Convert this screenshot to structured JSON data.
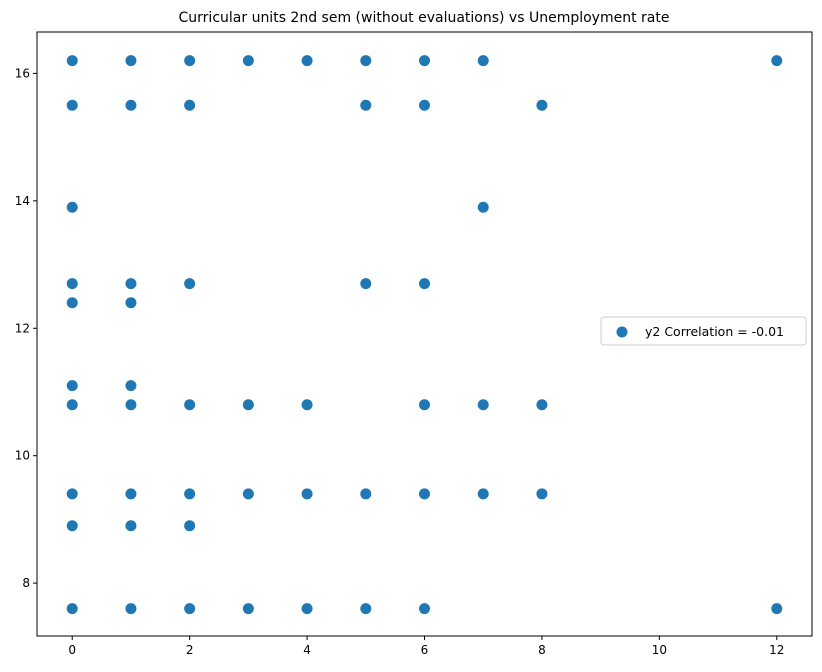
{
  "chart_data": {
    "type": "scatter",
    "title": "Curricular units 2nd sem (without evaluations) vs Unemployment rate",
    "xlabel": "",
    "ylabel": "",
    "xlim": [
      -0.6,
      12.6
    ],
    "ylim": [
      7.17,
      16.65
    ],
    "xticks": [
      0,
      2,
      4,
      6,
      8,
      10,
      12
    ],
    "yticks": [
      8,
      10,
      12,
      14,
      16
    ],
    "grid": false,
    "legend_position": "center-right",
    "series": [
      {
        "name": "y2 Correlation = -0.01",
        "color": "#1f77b4",
        "points": [
          [
            0,
            16.2
          ],
          [
            1,
            16.2
          ],
          [
            2,
            16.2
          ],
          [
            3,
            16.2
          ],
          [
            4,
            16.2
          ],
          [
            5,
            16.2
          ],
          [
            6,
            16.2
          ],
          [
            7,
            16.2
          ],
          [
            12,
            16.2
          ],
          [
            0,
            15.5
          ],
          [
            1,
            15.5
          ],
          [
            2,
            15.5
          ],
          [
            5,
            15.5
          ],
          [
            6,
            15.5
          ],
          [
            8,
            15.5
          ],
          [
            0,
            13.9
          ],
          [
            7,
            13.9
          ],
          [
            0,
            12.7
          ],
          [
            1,
            12.7
          ],
          [
            2,
            12.7
          ],
          [
            5,
            12.7
          ],
          [
            6,
            12.7
          ],
          [
            0,
            12.4
          ],
          [
            1,
            12.4
          ],
          [
            0,
            11.1
          ],
          [
            1,
            11.1
          ],
          [
            0,
            10.8
          ],
          [
            1,
            10.8
          ],
          [
            2,
            10.8
          ],
          [
            3,
            10.8
          ],
          [
            4,
            10.8
          ],
          [
            6,
            10.8
          ],
          [
            7,
            10.8
          ],
          [
            8,
            10.8
          ],
          [
            0,
            9.4
          ],
          [
            1,
            9.4
          ],
          [
            2,
            9.4
          ],
          [
            3,
            9.4
          ],
          [
            4,
            9.4
          ],
          [
            5,
            9.4
          ],
          [
            6,
            9.4
          ],
          [
            7,
            9.4
          ],
          [
            8,
            9.4
          ],
          [
            0,
            8.9
          ],
          [
            1,
            8.9
          ],
          [
            2,
            8.9
          ],
          [
            0,
            7.6
          ],
          [
            1,
            7.6
          ],
          [
            2,
            7.6
          ],
          [
            3,
            7.6
          ],
          [
            4,
            7.6
          ],
          [
            5,
            7.6
          ],
          [
            6,
            7.6
          ],
          [
            12,
            7.6
          ]
        ]
      }
    ]
  }
}
